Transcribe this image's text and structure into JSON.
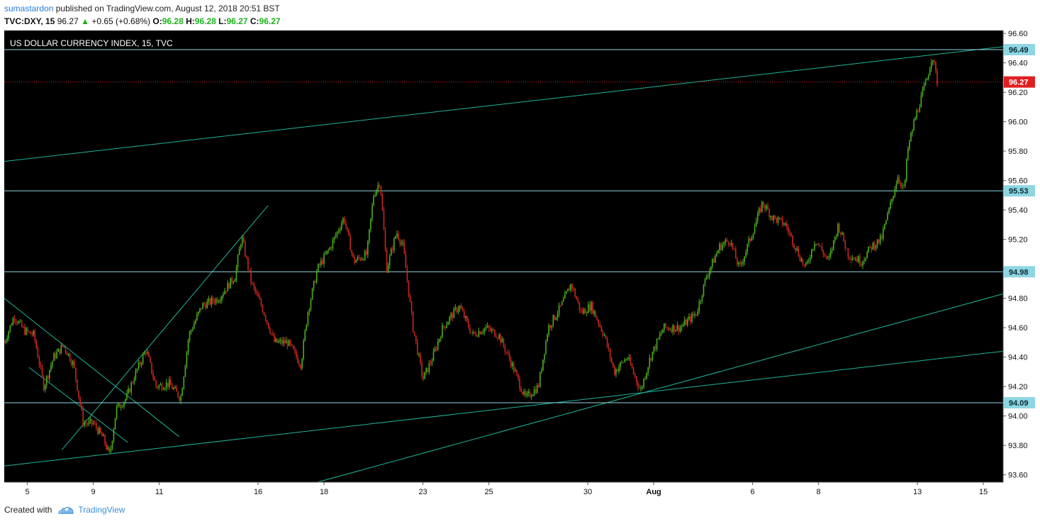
{
  "header": {
    "author": "sumastardon",
    "published_text": "published on TradingView.com, August 12, 2018 20:51 BST",
    "ticker": "TVC:DXY, 15",
    "last": "96.27",
    "change": "+0.65 (+0.68%)",
    "o_label": "O:",
    "o": "96.28",
    "h_label": "H:",
    "h": "96.28",
    "l_label": "L:",
    "l": "96.27",
    "c_label": "C:",
    "c": "96.27"
  },
  "footer": {
    "created_with": "Created with",
    "brand": "TradingView"
  },
  "colors": {
    "background": "#000000",
    "up_candle": "#4caf1e",
    "down_candle": "#c8281e",
    "trendline": "#1fb59a",
    "level_line": "#8fd6e3",
    "level_tag": "#8fd6e3",
    "price_line": "#e02020",
    "axis_text": "#111111"
  },
  "chart_data": {
    "type": "candlestick",
    "title": "US DOLLAR CURRENCY INDEX, 15, TVC",
    "ylim": [
      93.55,
      96.62
    ],
    "xlim": [
      0,
      30.3
    ],
    "y_ticks": [
      96.6,
      96.4,
      96.2,
      96.0,
      95.8,
      95.6,
      95.4,
      95.2,
      95.0,
      94.8,
      94.6,
      94.4,
      94.2,
      94.0,
      93.8,
      93.6
    ],
    "x_ticks": [
      {
        "label": "5",
        "x": 0.7
      },
      {
        "label": "9",
        "x": 2.7
      },
      {
        "label": "11",
        "x": 4.7
      },
      {
        "label": "16",
        "x": 7.7
      },
      {
        "label": "18",
        "x": 9.7
      },
      {
        "label": "23",
        "x": 12.7
      },
      {
        "label": "25",
        "x": 14.7
      },
      {
        "label": "30",
        "x": 17.7
      },
      {
        "label": "Aug",
        "x": 19.7
      },
      {
        "label": "6",
        "x": 22.7
      },
      {
        "label": "8",
        "x": 24.7
      },
      {
        "label": "13",
        "x": 27.7
      },
      {
        "label": "15",
        "x": 29.7
      }
    ],
    "horizontal_levels": [
      96.49,
      95.53,
      94.98,
      94.09
    ],
    "current_price": 96.27,
    "trendlines": [
      {
        "p1": [
          0,
          95.73
        ],
        "p2": [
          30.3,
          96.51
        ]
      },
      {
        "p1": [
          0,
          93.66
        ],
        "p2": [
          30.3,
          94.44
        ]
      },
      {
        "p1": [
          9.5,
          93.55
        ],
        "p2": [
          30.3,
          94.83
        ]
      },
      {
        "p1": [
          0,
          94.8
        ],
        "p2": [
          5.3,
          93.86
        ]
      },
      {
        "p1": [
          0.75,
          94.33
        ],
        "p2": [
          3.75,
          93.82
        ]
      },
      {
        "p1": [
          1.75,
          93.77
        ],
        "p2": [
          8.0,
          95.43
        ]
      }
    ],
    "path_points": [
      [
        0,
        94.5
      ],
      [
        0.3,
        94.68
      ],
      [
        0.6,
        94.58
      ],
      [
        0.9,
        94.55
      ],
      [
        1.2,
        94.2
      ],
      [
        1.5,
        94.4
      ],
      [
        1.8,
        94.48
      ],
      [
        2.1,
        94.35
      ],
      [
        2.4,
        93.95
      ],
      [
        2.7,
        93.95
      ],
      [
        3.0,
        93.85
      ],
      [
        3.2,
        93.73
      ],
      [
        3.4,
        94.05
      ],
      [
        3.7,
        94.12
      ],
      [
        4.0,
        94.3
      ],
      [
        4.3,
        94.45
      ],
      [
        4.6,
        94.2
      ],
      [
        5.0,
        94.22
      ],
      [
        5.35,
        94.12
      ],
      [
        5.6,
        94.55
      ],
      [
        6.0,
        94.75
      ],
      [
        6.5,
        94.8
      ],
      [
        7.0,
        94.95
      ],
      [
        7.2,
        95.22
      ],
      [
        7.5,
        94.9
      ],
      [
        7.8,
        94.75
      ],
      [
        8.2,
        94.5
      ],
      [
        8.6,
        94.5
      ],
      [
        9.0,
        94.35
      ],
      [
        9.2,
        94.7
      ],
      [
        9.5,
        95.0
      ],
      [
        9.9,
        95.15
      ],
      [
        10.3,
        95.35
      ],
      [
        10.6,
        95.05
      ],
      [
        11.0,
        95.1
      ],
      [
        11.2,
        95.5
      ],
      [
        11.4,
        95.6
      ],
      [
        11.6,
        95.0
      ],
      [
        11.9,
        95.25
      ],
      [
        12.1,
        95.15
      ],
      [
        12.4,
        94.6
      ],
      [
        12.7,
        94.25
      ],
      [
        13.0,
        94.4
      ],
      [
        13.3,
        94.6
      ],
      [
        13.8,
        94.75
      ],
      [
        14.2,
        94.55
      ],
      [
        14.6,
        94.6
      ],
      [
        15.0,
        94.55
      ],
      [
        15.4,
        94.35
      ],
      [
        15.8,
        94.12
      ],
      [
        16.2,
        94.2
      ],
      [
        16.5,
        94.6
      ],
      [
        16.9,
        94.75
      ],
      [
        17.2,
        94.9
      ],
      [
        17.5,
        94.7
      ],
      [
        17.8,
        94.75
      ],
      [
        18.2,
        94.55
      ],
      [
        18.5,
        94.3
      ],
      [
        18.9,
        94.4
      ],
      [
        19.3,
        94.17
      ],
      [
        19.6,
        94.4
      ],
      [
        20.0,
        94.6
      ],
      [
        20.5,
        94.6
      ],
      [
        21.0,
        94.7
      ],
      [
        21.3,
        94.95
      ],
      [
        21.7,
        95.15
      ],
      [
        22.0,
        95.2
      ],
      [
        22.3,
        95.0
      ],
      [
        22.7,
        95.25
      ],
      [
        23.0,
        95.45
      ],
      [
        23.3,
        95.35
      ],
      [
        23.7,
        95.3
      ],
      [
        24.0,
        95.15
      ],
      [
        24.3,
        95.0
      ],
      [
        24.6,
        95.2
      ],
      [
        25.0,
        95.05
      ],
      [
        25.3,
        95.3
      ],
      [
        25.6,
        95.1
      ],
      [
        26.0,
        95.05
      ],
      [
        26.3,
        95.15
      ],
      [
        26.6,
        95.2
      ],
      [
        26.9,
        95.45
      ],
      [
        27.1,
        95.63
      ],
      [
        27.3,
        95.53
      ],
      [
        27.4,
        95.8
      ],
      [
        27.6,
        96.0
      ],
      [
        27.8,
        96.15
      ],
      [
        28.0,
        96.3
      ],
      [
        28.15,
        96.46
      ],
      [
        28.3,
        96.27
      ]
    ]
  }
}
